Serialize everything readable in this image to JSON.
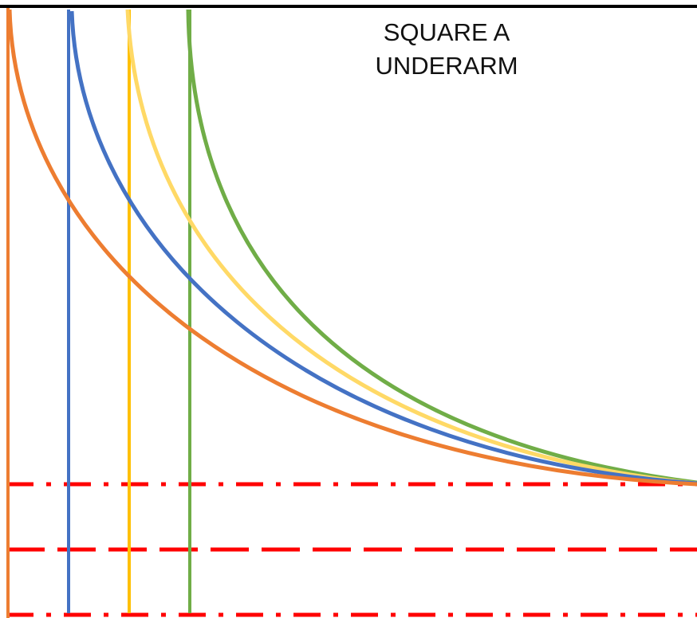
{
  "title": {
    "line1": "SQUARE A",
    "line2": "UNDERARM"
  },
  "colors": {
    "orange": "#ED7D31",
    "blue": "#4472C4",
    "yellow": "#FFD966",
    "gold": "#FFC000",
    "green": "#70AD47",
    "red_dash": "#FF0000",
    "top_border": "#000000"
  }
}
